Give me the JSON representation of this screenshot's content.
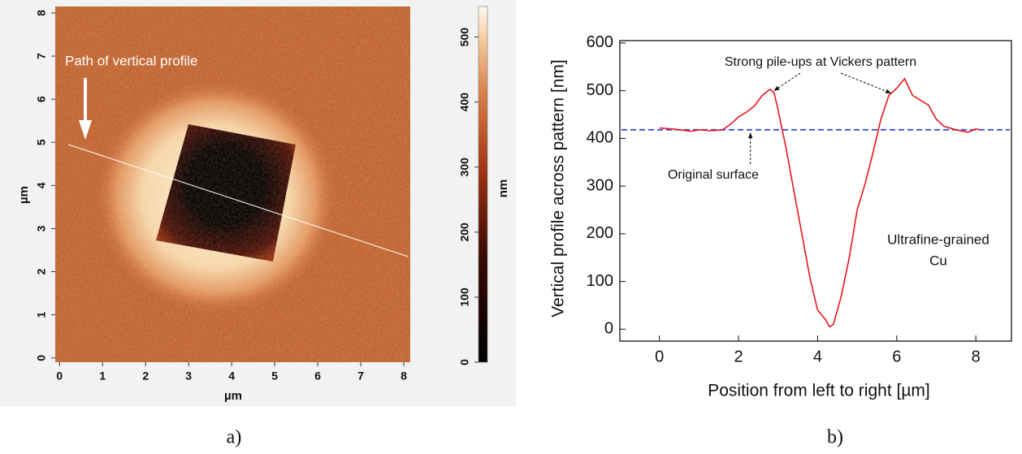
{
  "chart_data": [
    {
      "type": "image",
      "caption": "a)",
      "x_label": "µm",
      "y_label": "µm",
      "xlim": [
        -0.1,
        8.15
      ],
      "xticks": [
        0,
        1,
        2,
        3,
        4,
        5,
        6,
        7,
        8
      ],
      "ylim": [
        -0.1,
        8.15
      ],
      "yticks": [
        0,
        1,
        2,
        3,
        4,
        5,
        6,
        7,
        8
      ],
      "colorbar_label": "nm",
      "clim": [
        0,
        547
      ],
      "cticks": [
        0,
        100,
        200,
        300,
        400,
        500
      ],
      "annotation": "Path of vertical profile"
    },
    {
      "type": "line",
      "caption": "b)",
      "x_label": "Position from left to right [µm]",
      "y_label": "Vertical profile across pattern [nm]",
      "xlim": [
        -1,
        8.9
      ],
      "xticks": [
        0,
        2,
        4,
        6,
        8
      ],
      "ylim": [
        -25,
        605
      ],
      "yticks": [
        0,
        100,
        200,
        300,
        400,
        500,
        600
      ],
      "x": [
        0,
        0.3,
        0.5,
        0.8,
        1.0,
        1.3,
        1.6,
        1.8,
        2.0,
        2.2,
        2.4,
        2.6,
        2.8,
        2.9,
        3.0,
        3.2,
        3.4,
        3.6,
        3.8,
        4.0,
        4.2,
        4.3,
        4.4,
        4.6,
        4.8,
        5.0,
        5.2,
        5.4,
        5.6,
        5.8,
        6.0,
        6.2,
        6.4,
        6.6,
        6.8,
        7.0,
        7.2,
        7.5,
        7.8,
        8.0,
        8.1
      ],
      "values": [
        422,
        420,
        418,
        415,
        418,
        416,
        418,
        430,
        445,
        455,
        468,
        490,
        503,
        495,
        460,
        380,
        290,
        200,
        110,
        40,
        20,
        5,
        10,
        70,
        150,
        250,
        305,
        370,
        440,
        490,
        505,
        525,
        490,
        480,
        470,
        440,
        425,
        418,
        413,
        420,
        418
      ],
      "color": "#e8161b",
      "reference_line": {
        "value": 418,
        "color": "#3a4fd8"
      },
      "annotations": [
        "Strong pile-ups at Vickers pattern",
        "Original surface",
        "Ultrafine-grained",
        "Cu"
      ]
    }
  ]
}
